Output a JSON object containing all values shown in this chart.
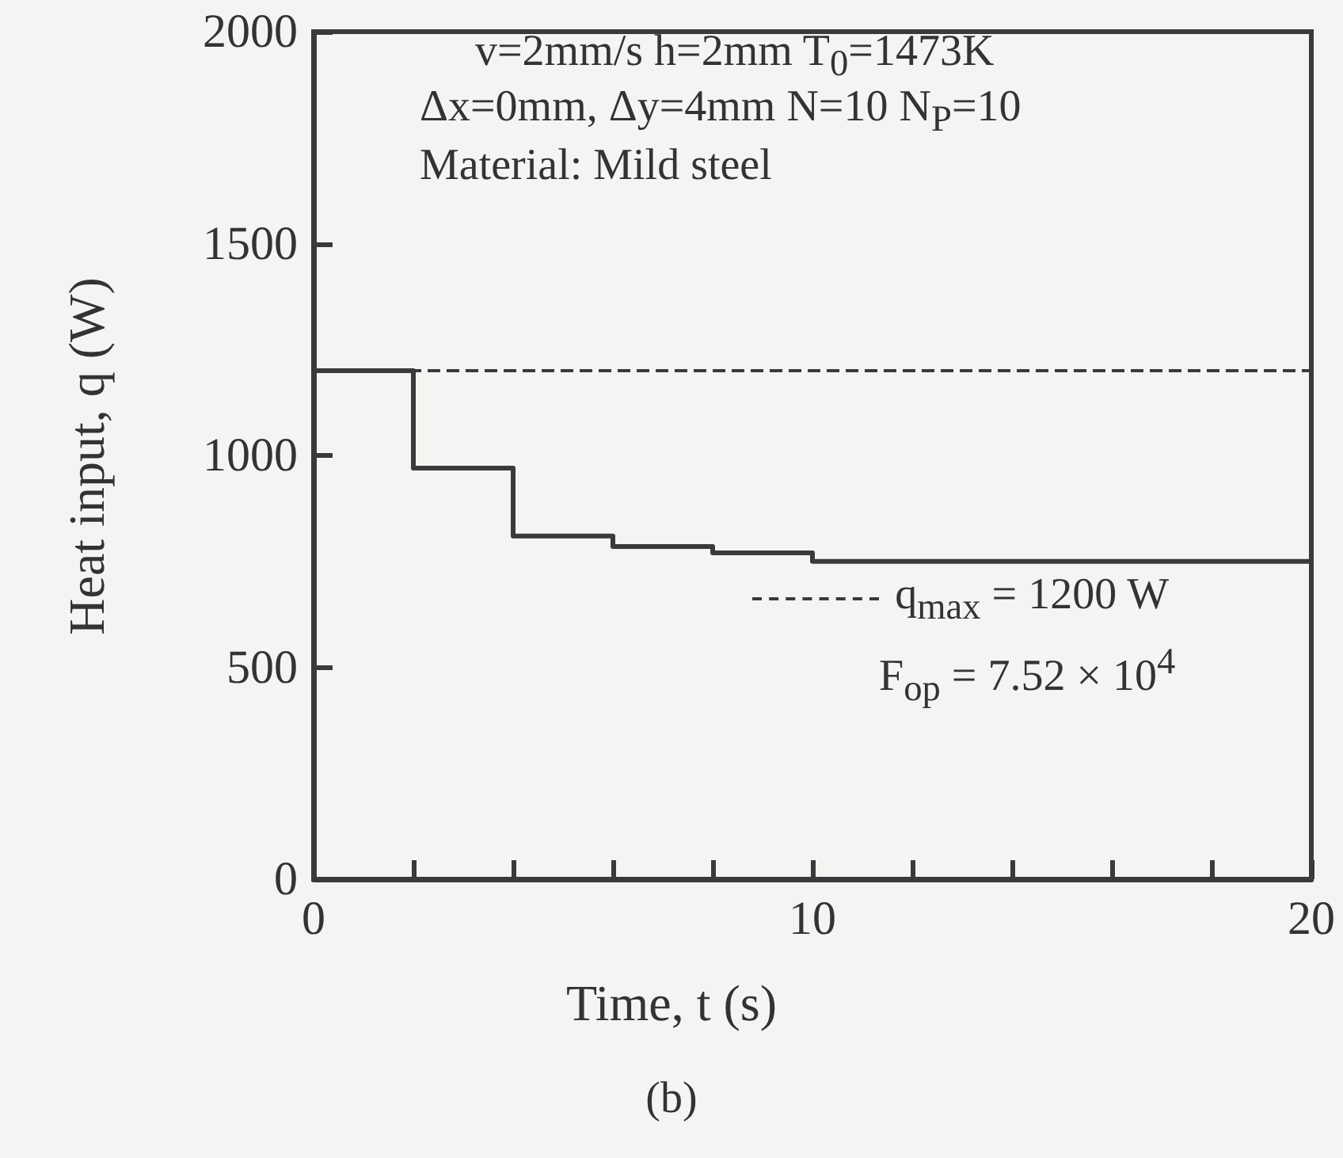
{
  "chart_data": {
    "type": "step",
    "xlabel": "Time, t  (s)",
    "ylabel": "Heat input, q  (W)",
    "x": [
      0,
      2,
      4,
      6,
      8,
      10,
      20
    ],
    "series": [
      {
        "color": "#3a3a3a",
        "values": [
          1200,
          970,
          810,
          785,
          770,
          750,
          750
        ]
      }
    ],
    "xlim": [
      0,
      20
    ],
    "xticks": [
      0,
      {
        "value": 2,
        "label": null
      },
      {
        "value": 4,
        "label": null
      },
      {
        "value": 6,
        "label": null
      },
      {
        "value": 8,
        "label": null
      },
      10,
      {
        "value": 12,
        "label": null
      },
      {
        "value": 14,
        "label": null
      },
      {
        "value": 16,
        "label": null
      },
      {
        "value": 18,
        "label": null
      },
      20
    ],
    "ylim": [
      0,
      2000
    ],
    "yticks": [
      0,
      500,
      1000,
      1500,
      2000
    ],
    "ref_lines": [
      {
        "axis": "y",
        "value": 1200,
        "label": "q$_{max}$ = 1200 W",
        "line_style": "dashed",
        "color": "#3a3a3a"
      }
    ],
    "annotations": [
      "v=2mm/s  h=2mm  T$_{0}$=1473K",
      "Δx=0mm, Δy=4mm  N=10  N$_{P}$=10",
      "Material: Mild steel",
      "F$_{op}$  = 7.52 × 10$^{4}$",
      "(b)"
    ],
    "grid": false,
    "legend": "bottom right",
    "marker": "none",
    "line_style": "solid"
  }
}
